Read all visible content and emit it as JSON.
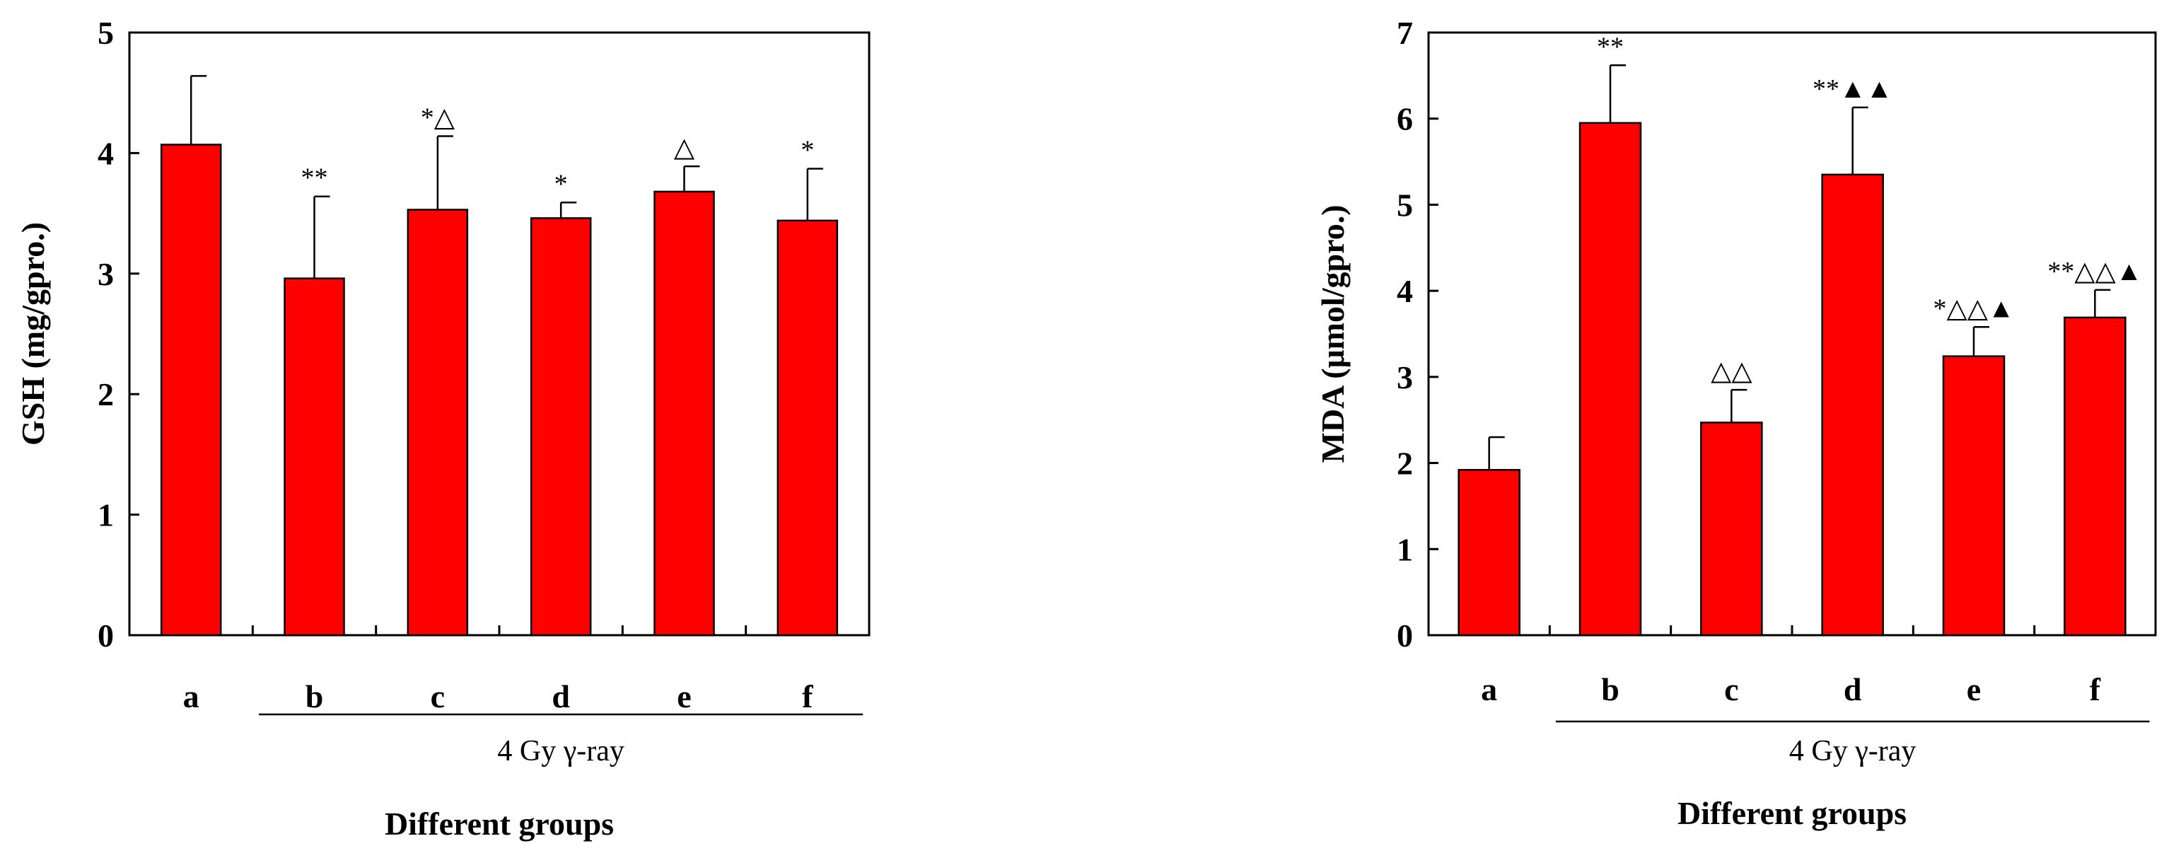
{
  "chart_data": [
    {
      "type": "bar",
      "categories": [
        "a",
        "b",
        "c",
        "d",
        "e",
        "f"
      ],
      "values": [
        4.07,
        2.96,
        3.53,
        3.46,
        3.68,
        3.44
      ],
      "errors": [
        0.57,
        0.68,
        0.61,
        0.13,
        0.21,
        0.43
      ],
      "annotations": [
        "",
        "**",
        "*△",
        "*",
        "△",
        "*"
      ],
      "ylabel": "GSH (mg/gpro.)",
      "xlabel": "Different groups",
      "group_label": "4 Gy γ-ray",
      "group_range": [
        "b",
        "f"
      ],
      "ylim": [
        0,
        5
      ],
      "yticks": [
        "0",
        "1",
        "2",
        "3",
        "4",
        "5"
      ],
      "bar_color": "#ff0000",
      "grid": false
    },
    {
      "type": "bar",
      "categories": [
        "a",
        "b",
        "c",
        "d",
        "e",
        "f"
      ],
      "values": [
        1.92,
        5.95,
        2.47,
        5.35,
        3.24,
        3.69
      ],
      "errors": [
        0.38,
        0.67,
        0.38,
        0.78,
        0.34,
        0.32
      ],
      "annotations": [
        "",
        "**",
        "△△",
        "**▲▲",
        "*△△▲",
        "**△△▲"
      ],
      "ylabel": "MDA (μmol/gpro.)",
      "xlabel": "Different groups",
      "group_label": "4 Gy γ-ray",
      "group_range": [
        "b",
        "f"
      ],
      "ylim": [
        0,
        7
      ],
      "yticks": [
        "0",
        "1",
        "2",
        "3",
        "4",
        "5",
        "6",
        "7"
      ],
      "bar_color": "#ff0000",
      "grid": false
    }
  ]
}
